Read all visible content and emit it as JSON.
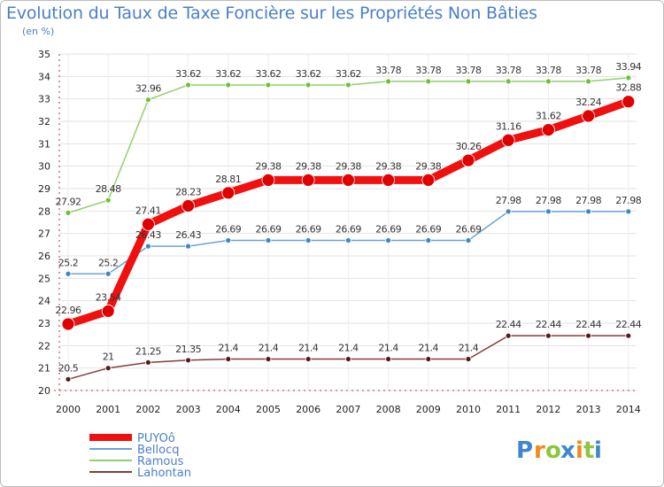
{
  "chart_data": {
    "type": "line",
    "title": "Evolution du Taux de Taxe Foncière sur les Propriétés Non Bâties",
    "ylabel": "(en %)",
    "xlabel": "",
    "ylim": [
      20,
      35
    ],
    "yticks": [
      "20",
      "21",
      "22",
      "23",
      "24",
      "25",
      "26",
      "27",
      "28",
      "29",
      "30",
      "31",
      "32",
      "33",
      "34",
      "35"
    ],
    "categories": [
      "2000",
      "2001",
      "2002",
      "2003",
      "2004",
      "2005",
      "2006",
      "2007",
      "2008",
      "2009",
      "2010",
      "2011",
      "2012",
      "2013",
      "2014"
    ],
    "series": [
      {
        "name": "Ramous",
        "color": "#8fd16a",
        "dot": "#6bc234",
        "width": 1.5,
        "dotr": 3,
        "values": [
          27.92,
          28.48,
          32.96,
          33.62,
          33.62,
          33.62,
          33.62,
          33.62,
          33.78,
          33.78,
          33.78,
          33.78,
          33.78,
          33.78,
          33.94
        ],
        "labels": [
          "27.92",
          "28.48",
          "32.96",
          "33.62",
          "33.62",
          "33.62",
          "33.62",
          "33.62",
          "33.78",
          "33.78",
          "33.78",
          "33.78",
          "33.78",
          "33.78",
          "33.94"
        ]
      },
      {
        "name": "Bellocq",
        "color": "#6aa3d4",
        "dot": "#3d86c6",
        "width": 1.5,
        "dotr": 3,
        "values": [
          25.2,
          25.2,
          26.43,
          26.43,
          26.69,
          26.69,
          26.69,
          26.69,
          26.69,
          26.69,
          26.69,
          27.98,
          27.98,
          27.98,
          27.98
        ],
        "labels": [
          "25.2",
          "25.2",
          "26.43",
          "26.43",
          "26.69",
          "26.69",
          "26.69",
          "26.69",
          "26.69",
          "26.69",
          "26.69",
          "27.98",
          "27.98",
          "27.98",
          "27.98"
        ]
      },
      {
        "name": "Lahontan",
        "color": "#8a3a3a",
        "dot": "#5a1818",
        "width": 1.5,
        "dotr": 3,
        "values": [
          20.5,
          21,
          21.25,
          21.35,
          21.4,
          21.4,
          21.4,
          21.4,
          21.4,
          21.4,
          21.4,
          22.44,
          22.44,
          22.44,
          22.44
        ],
        "labels": [
          "20.5",
          "21",
          "21.25",
          "21.35",
          "21.4",
          "21.4",
          "21.4",
          "21.4",
          "21.4",
          "21.4",
          "21.4",
          "22.44",
          "22.44",
          "22.44",
          "22.44"
        ]
      },
      {
        "name": "PUYOô",
        "color": "#f01010",
        "dot": "#e00000",
        "width": 9,
        "dotr": 7,
        "values": [
          22.96,
          23.54,
          27.41,
          28.23,
          28.81,
          29.38,
          29.38,
          29.38,
          29.38,
          29.38,
          30.26,
          31.16,
          31.62,
          32.24,
          32.88
        ],
        "labels": [
          "22.96",
          "23.54",
          "27.41",
          "28.23",
          "28.81",
          "29.38",
          "29.38",
          "29.38",
          "29.38",
          "29.38",
          "30.26",
          "31.16",
          "31.62",
          "32.24",
          "32.88"
        ]
      }
    ],
    "legend": [
      "PUYOô",
      "Bellocq",
      "Ramous",
      "Lahontan"
    ],
    "legend_placement": "bottom-left"
  },
  "logo": {
    "letters": [
      "P",
      "r",
      "o",
      "x",
      "i",
      "t",
      "i"
    ],
    "colors": [
      "#3f86cf",
      "#f08a18",
      "#8cc63f",
      "#3f86cf",
      "#f08a18",
      "#8cc63f",
      "#3f86cf"
    ]
  }
}
